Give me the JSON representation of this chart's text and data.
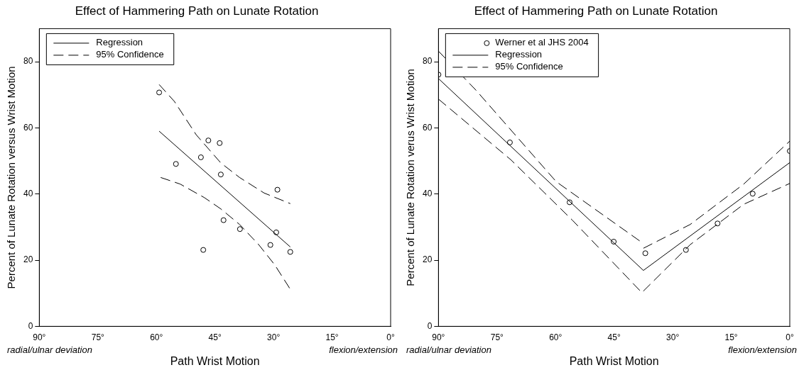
{
  "chart_data": [
    {
      "type": "scatter",
      "title": "Effect of Hammering Path on Lunate Rotation",
      "xlabel": "Path Wrist Motion",
      "ylabel": "Percent of Lunate Rotation versus Wrist Motion",
      "xlim": [
        90,
        0
      ],
      "ylim": [
        0,
        90
      ],
      "xticks": [
        {
          "value": 90,
          "label": "90°"
        },
        {
          "value": 75,
          "label": "75°"
        },
        {
          "value": 60,
          "label": "60°"
        },
        {
          "value": 45,
          "label": "45°"
        },
        {
          "value": 30,
          "label": "30°"
        },
        {
          "value": 15,
          "label": "15°"
        },
        {
          "value": 0,
          "label": "0°"
        }
      ],
      "yticks": [
        0,
        20,
        40,
        60,
        80
      ],
      "grid": false,
      "legend": "top left",
      "annotations": [
        "radial/ulnar deviation",
        "flexion/extension"
      ],
      "series": [
        {
          "type": "scatter",
          "marker": "circle",
          "color": "#000000",
          "x": [
            59.3,
            55.0,
            48.6,
            46.7,
            43.8,
            43.5,
            42.8,
            48.0,
            38.6,
            29.0,
            29.3,
            30.8,
            25.7
          ],
          "values": [
            70.7,
            49.1,
            51.1,
            56.2,
            55.4,
            45.9,
            32.1,
            23.1,
            29.4,
            41.3,
            28.4,
            24.6,
            22.5
          ]
        },
        {
          "type": "line",
          "name": "Regression",
          "marker": "none",
          "line_style": "solid",
          "color": "#000000",
          "x": [
            59.3,
            25.7
          ],
          "values": [
            59.0,
            24.0
          ]
        },
        {
          "type": "line",
          "name": "95% Confidence",
          "marker": "none",
          "line_style": "dashed",
          "color": "#000000",
          "x": [
            59.3,
            55.4,
            49.8,
            43.5,
            38.7,
            32.4,
            25.7
          ],
          "values": [
            73.1,
            68.0,
            57.9,
            49.4,
            45.0,
            40.3,
            37.1
          ]
        },
        {
          "type": "line",
          "marker": "none",
          "line_style": "dashed",
          "color": "#000000",
          "x": [
            58.9,
            53.9,
            47.7,
            43.5,
            38.7,
            33.8,
            29.7,
            25.7
          ],
          "values": [
            45.0,
            43.0,
            38.9,
            35.5,
            30.8,
            24.7,
            18.6,
            11.2
          ]
        }
      ]
    },
    {
      "type": "scatter",
      "title": "Effect of Hammering Path on Lunate Rotation",
      "xlabel": "Path Wrist Motion",
      "ylabel": "Percent of Lunate Rotation verus Wrist Motion",
      "xlim": [
        90,
        0
      ],
      "ylim": [
        0,
        90
      ],
      "xticks": [
        {
          "value": 90,
          "label": "90°"
        },
        {
          "value": 75,
          "label": "75°"
        },
        {
          "value": 60,
          "label": "60°"
        },
        {
          "value": 45,
          "label": "45°"
        },
        {
          "value": 30,
          "label": "30°"
        },
        {
          "value": 15,
          "label": "15°"
        },
        {
          "value": 0,
          "label": "0°"
        }
      ],
      "yticks": [
        0,
        20,
        40,
        60,
        80
      ],
      "grid": false,
      "legend": "top left",
      "annotations": [
        "radial/ulnar deviation",
        "flexion/extension"
      ],
      "series": [
        {
          "type": "scatter",
          "name": "Werner et al JHS 2004",
          "marker": "circle",
          "color": "#000000",
          "x": [
            90,
            71.7,
            56.4,
            45.1,
            37.0,
            26.6,
            18.5,
            9.5,
            0
          ],
          "values": [
            76.1,
            55.6,
            37.5,
            25.6,
            22.1,
            23.1,
            31.1,
            40.1,
            53.0
          ]
        },
        {
          "type": "line",
          "name": "Regression",
          "marker": "none",
          "line_style": "solid",
          "color": "#000000",
          "x": [
            90,
            37.5,
            0
          ],
          "values": [
            74.9,
            16.9,
            49.5
          ]
        },
        {
          "type": "line",
          "name": "95% Confidence",
          "marker": "none",
          "line_style": "dashed",
          "color": "#000000",
          "x": [
            90,
            80.4,
            59.8,
            37.7,
            37.6,
            37.5,
            25.5,
            11.8,
            0
          ],
          "values": [
            83.2,
            71.4,
            43.7,
            25.2,
            null,
            23.6,
            30.8,
            43.0,
            56.0
          ]
        },
        {
          "type": "line",
          "marker": "none",
          "line_style": "dashed",
          "color": "#000000",
          "x": [
            90,
            71.5,
            55.7,
            37.9,
            25.5,
            11.8,
            0
          ],
          "values": [
            68.7,
            50.4,
            32.1,
            10.2,
            24.7,
            36.9,
            43.2
          ]
        }
      ]
    }
  ]
}
